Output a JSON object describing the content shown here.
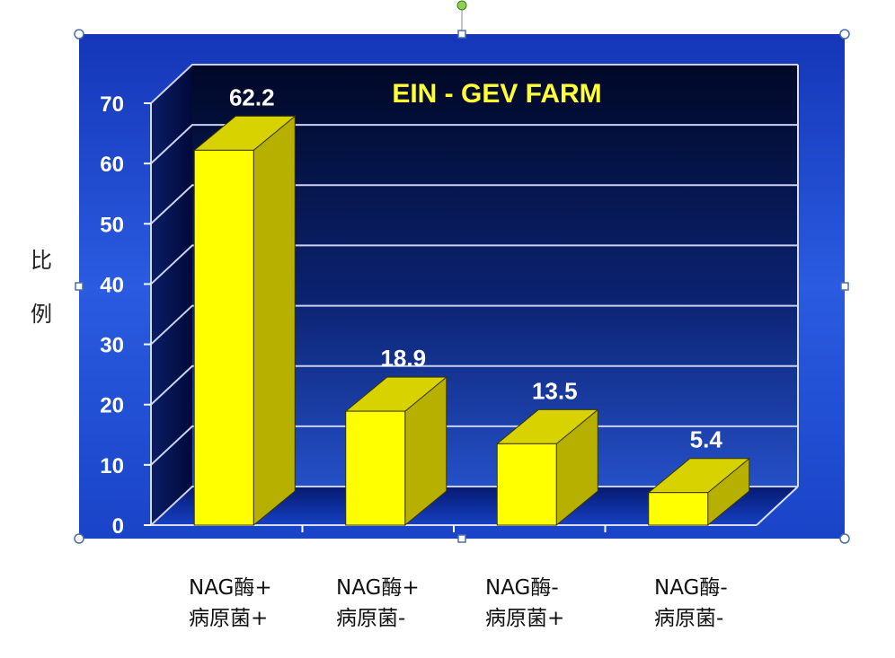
{
  "chart_data": {
    "type": "bar",
    "title": "EIN - GEV FARM",
    "ylabel": "比例",
    "ylim": [
      0,
      70
    ],
    "yticks": [
      0,
      10,
      20,
      30,
      40,
      50,
      60,
      70
    ],
    "grid": true,
    "categories": [
      [
        "NAG酶+",
        "病原菌+"
      ],
      [
        "NAG酶+",
        "病原菌-"
      ],
      [
        "NAG酶-",
        "病原菌+"
      ],
      [
        "NAG酶-",
        "病原菌-"
      ]
    ],
    "values": [
      62.2,
      18.9,
      13.5,
      5.4
    ],
    "data_labels": [
      "62.2",
      "18.9",
      "13.5",
      "5.4"
    ],
    "style": "3d-bar"
  },
  "colors": {
    "panel_blue": "#1f4fd6",
    "wall_dark": "#000a3a",
    "bar_front": "#ffff00",
    "bar_side": "#b8b000",
    "bar_top": "#d8d200",
    "title": "#ffff33",
    "labels": "#ffffff",
    "selection_handle": "#4a6fa8"
  }
}
